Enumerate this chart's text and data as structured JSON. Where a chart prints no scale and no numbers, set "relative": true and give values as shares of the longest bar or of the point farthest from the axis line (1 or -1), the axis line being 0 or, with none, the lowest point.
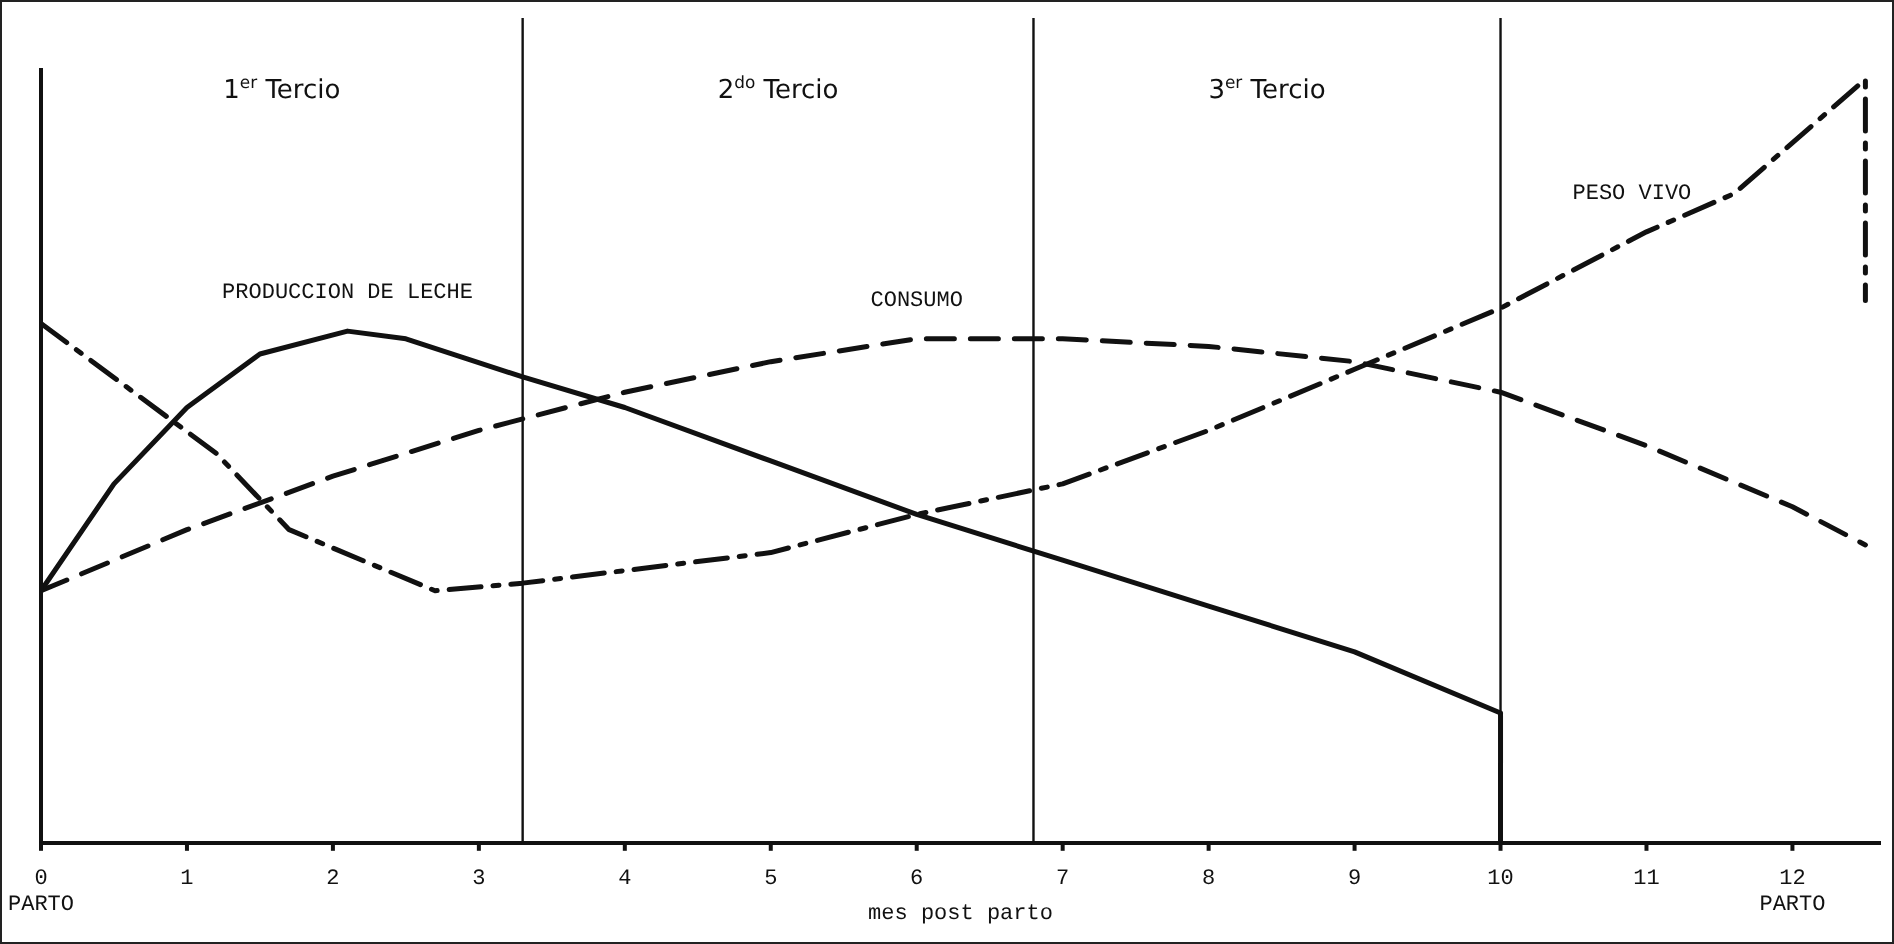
{
  "chart_data": {
    "type": "line",
    "relative": true,
    "xlabel": "mes post parto",
    "xlim": [
      0,
      12.6
    ],
    "xticks": [
      {
        "value": 0,
        "label": "0\nPARTO"
      },
      1,
      2,
      3,
      4,
      5,
      6,
      7,
      8,
      9,
      10,
      11,
      {
        "value": 12,
        "label": "12\nPARTO"
      }
    ],
    "ref_lines": [
      {
        "axis": "x",
        "value": 3.3
      },
      {
        "axis": "x",
        "value": 6.8
      },
      {
        "axis": "x",
        "value": 10
      }
    ],
    "annotations": [
      "1$^{er}$ Tercio",
      "2$^{do}$ Tercio",
      "3$^{er}$ Tercio"
    ],
    "grid": false,
    "legend": false,
    "marker": "none",
    "series": [
      {
        "name": "PRODUCCION DE LECHE",
        "color": "#111111",
        "line_style": "solid",
        "x": [
          0,
          0.5,
          1,
          1.5,
          2.1,
          2.5,
          3.3,
          4,
          5,
          6,
          7,
          8,
          9,
          10,
          10
        ],
        "values": [
          0.33,
          0.47,
          0.57,
          0.64,
          0.67,
          0.66,
          0.61,
          0.57,
          0.5,
          0.43,
          0.37,
          0.31,
          0.25,
          0.17,
          0
        ]
      },
      {
        "name": "CONSUMO",
        "color": "#111111",
        "line_style": "dashed",
        "x": [
          0,
          1,
          2,
          3,
          4,
          5,
          6,
          7,
          8,
          9,
          10,
          11,
          12,
          12.5
        ],
        "values": [
          0.33,
          0.41,
          0.48,
          0.54,
          0.59,
          0.63,
          0.66,
          0.66,
          0.65,
          0.63,
          0.59,
          0.52,
          0.44,
          0.39
        ]
      },
      {
        "name": "PESO VIVO",
        "color": "#111111",
        "line_style": "dashdot",
        "x": [
          0,
          1.2,
          1.7,
          2.7,
          3.3,
          5,
          6,
          7,
          8,
          9,
          10,
          11,
          11.6,
          12.5,
          12.5
        ],
        "values": [
          0.68,
          0.51,
          0.41,
          0.33,
          0.34,
          0.38,
          0.43,
          0.47,
          0.54,
          0.62,
          0.7,
          0.8,
          0.85,
          1,
          0.71
        ]
      }
    ]
  }
}
